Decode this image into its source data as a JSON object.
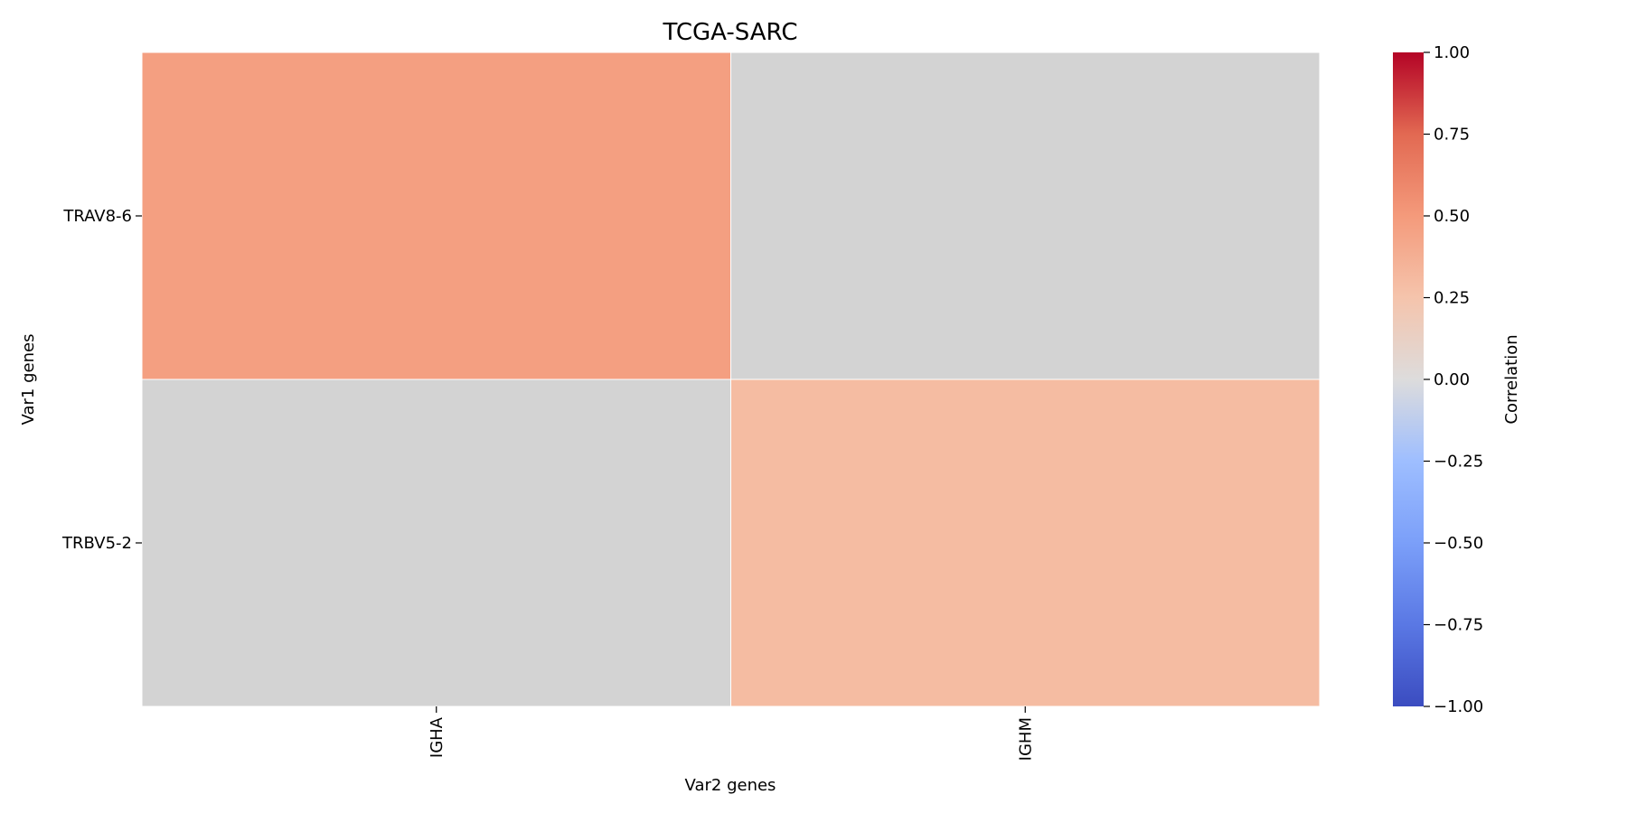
{
  "chart_data": {
    "type": "heatmap",
    "title": "TCGA-SARC",
    "xlabel": "Var2 genes",
    "ylabel": "Var1 genes",
    "x_categories": [
      "IGHA",
      "IGHM"
    ],
    "y_categories": [
      "TRAV8-6",
      "TRBV5-2"
    ],
    "values": [
      [
        0.47,
        null
      ],
      [
        null,
        0.3
      ]
    ],
    "missing_color": "#d3d3d3",
    "colormap": "coolwarm",
    "vmin": -1.0,
    "vmax": 1.0,
    "colorbar": {
      "label": "Correlation",
      "ticks": [
        1.0,
        0.75,
        0.5,
        0.25,
        0.0,
        -0.25,
        -0.5,
        -0.75,
        -1.0
      ],
      "tick_labels": [
        "1.00",
        "0.75",
        "0.50",
        "0.25",
        "0.00",
        "−0.25",
        "−0.50",
        "−0.75",
        "−1.00"
      ]
    }
  }
}
